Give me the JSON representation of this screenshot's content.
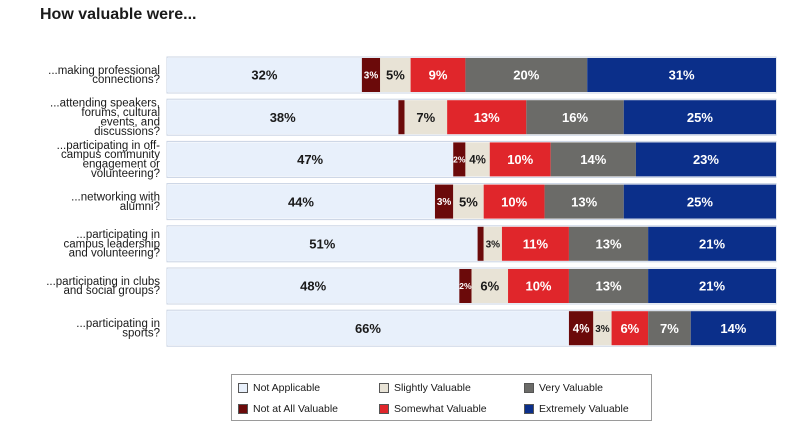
{
  "chart_data": {
    "type": "bar",
    "orientation": "horizontal",
    "stacked": true,
    "title": "How valuable were...",
    "categories": [
      "...making professional connections?",
      "...attending speakers, forums, cultural events, and discussions?",
      "...participating in off-campus community engagement or volunteering?",
      "...networking with alumni?",
      "...participating in campus leadership and volunteering?",
      "...participating in clubs and social groups?",
      "...participating in sports?"
    ],
    "category_lines": [
      [
        "...making professional",
        "connections?"
      ],
      [
        "...attending speakers,",
        "forums, cultural",
        "events, and",
        "discussions?"
      ],
      [
        "...participating in off-",
        "campus community",
        "engagement or",
        "volunteering?"
      ],
      [
        "...networking with",
        "alumni?"
      ],
      [
        "...participating in",
        "campus leadership",
        "and volunteering?"
      ],
      [
        "...participating in clubs",
        "and social groups?"
      ],
      [
        "...participating in",
        "sports?"
      ]
    ],
    "series": [
      {
        "name": "Not Applicable",
        "color": "#e8f0fb",
        "text_color": "#1a1a1a",
        "values": [
          32,
          38,
          47,
          44,
          51,
          48,
          66
        ]
      },
      {
        "name": "Not at All Valuable",
        "color": "#6b0a0a",
        "text_color": "#ffffff",
        "values": [
          3,
          1,
          2,
          3,
          1,
          2,
          4
        ]
      },
      {
        "name": "Slightly Valuable",
        "color": "#e8e3d6",
        "text_color": "#1a1a1a",
        "values": [
          5,
          7,
          4,
          5,
          3,
          6,
          3
        ]
      },
      {
        "name": "Somewhat Valuable",
        "color": "#e0262b",
        "text_color": "#ffffff",
        "values": [
          9,
          13,
          10,
          10,
          11,
          10,
          6
        ]
      },
      {
        "name": "Very Valuable",
        "color": "#6b6b68",
        "text_color": "#ffffff",
        "values": [
          20,
          16,
          14,
          13,
          13,
          13,
          7
        ]
      },
      {
        "name": "Extremely Valuable",
        "color": "#0b2f8a",
        "text_color": "#ffffff",
        "values": [
          31,
          25,
          23,
          25,
          21,
          21,
          14
        ]
      }
    ],
    "data_labels": [
      [
        "32%",
        "3%",
        "5%",
        "9%",
        "20%",
        "31%"
      ],
      [
        "38%",
        "",
        "7%",
        "13%",
        "16%",
        "25%"
      ],
      [
        "47%",
        "2%",
        "4%",
        "10%",
        "14%",
        "23%"
      ],
      [
        "44%",
        "3%",
        "5%",
        "10%",
        "13%",
        "25%"
      ],
      [
        "51%",
        "",
        "3%",
        "11%",
        "13%",
        "21%"
      ],
      [
        "48%",
        "2%",
        "6%",
        "10%",
        "13%",
        "21%"
      ],
      [
        "66%",
        "4%",
        "3%",
        "6%",
        "7%",
        "14%"
      ]
    ],
    "legend": {
      "position": "bottom",
      "columns": 3
    },
    "grid": false
  }
}
